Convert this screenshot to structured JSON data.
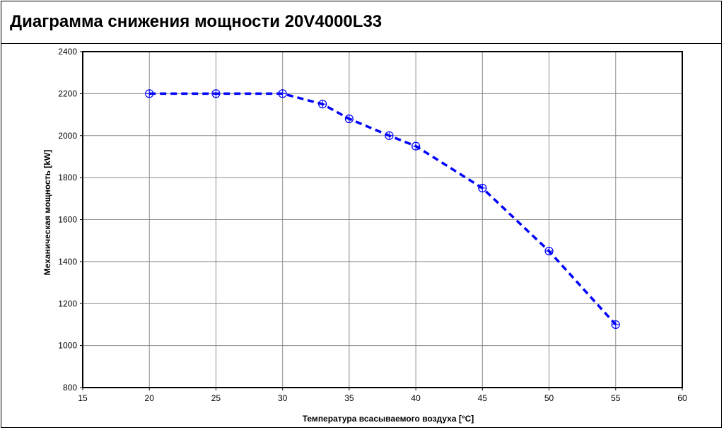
{
  "chart_data": {
    "type": "line",
    "title": "Диаграмма снижения мощности 20V4000L33",
    "xlabel": "Температура всасываемого воздуха [°C]",
    "ylabel": "Механическая мощность [kW]",
    "xlim": [
      15,
      60
    ],
    "ylim": [
      800,
      2400
    ],
    "xticks": [
      15,
      20,
      25,
      30,
      35,
      40,
      45,
      50,
      55,
      60
    ],
    "yticks": [
      800,
      1000,
      1200,
      1400,
      1600,
      1800,
      2000,
      2200,
      2400
    ],
    "grid": true,
    "series": [
      {
        "x": [
          20,
          25,
          30,
          33,
          35,
          38,
          40,
          45,
          50,
          55
        ],
        "values": [
          2200,
          2200,
          2200,
          2150,
          2080,
          2000,
          1950,
          1750,
          1450,
          1100
        ],
        "line_style": "dashed",
        "marker": "circle-crosshair",
        "color": "#0000ff"
      }
    ]
  }
}
